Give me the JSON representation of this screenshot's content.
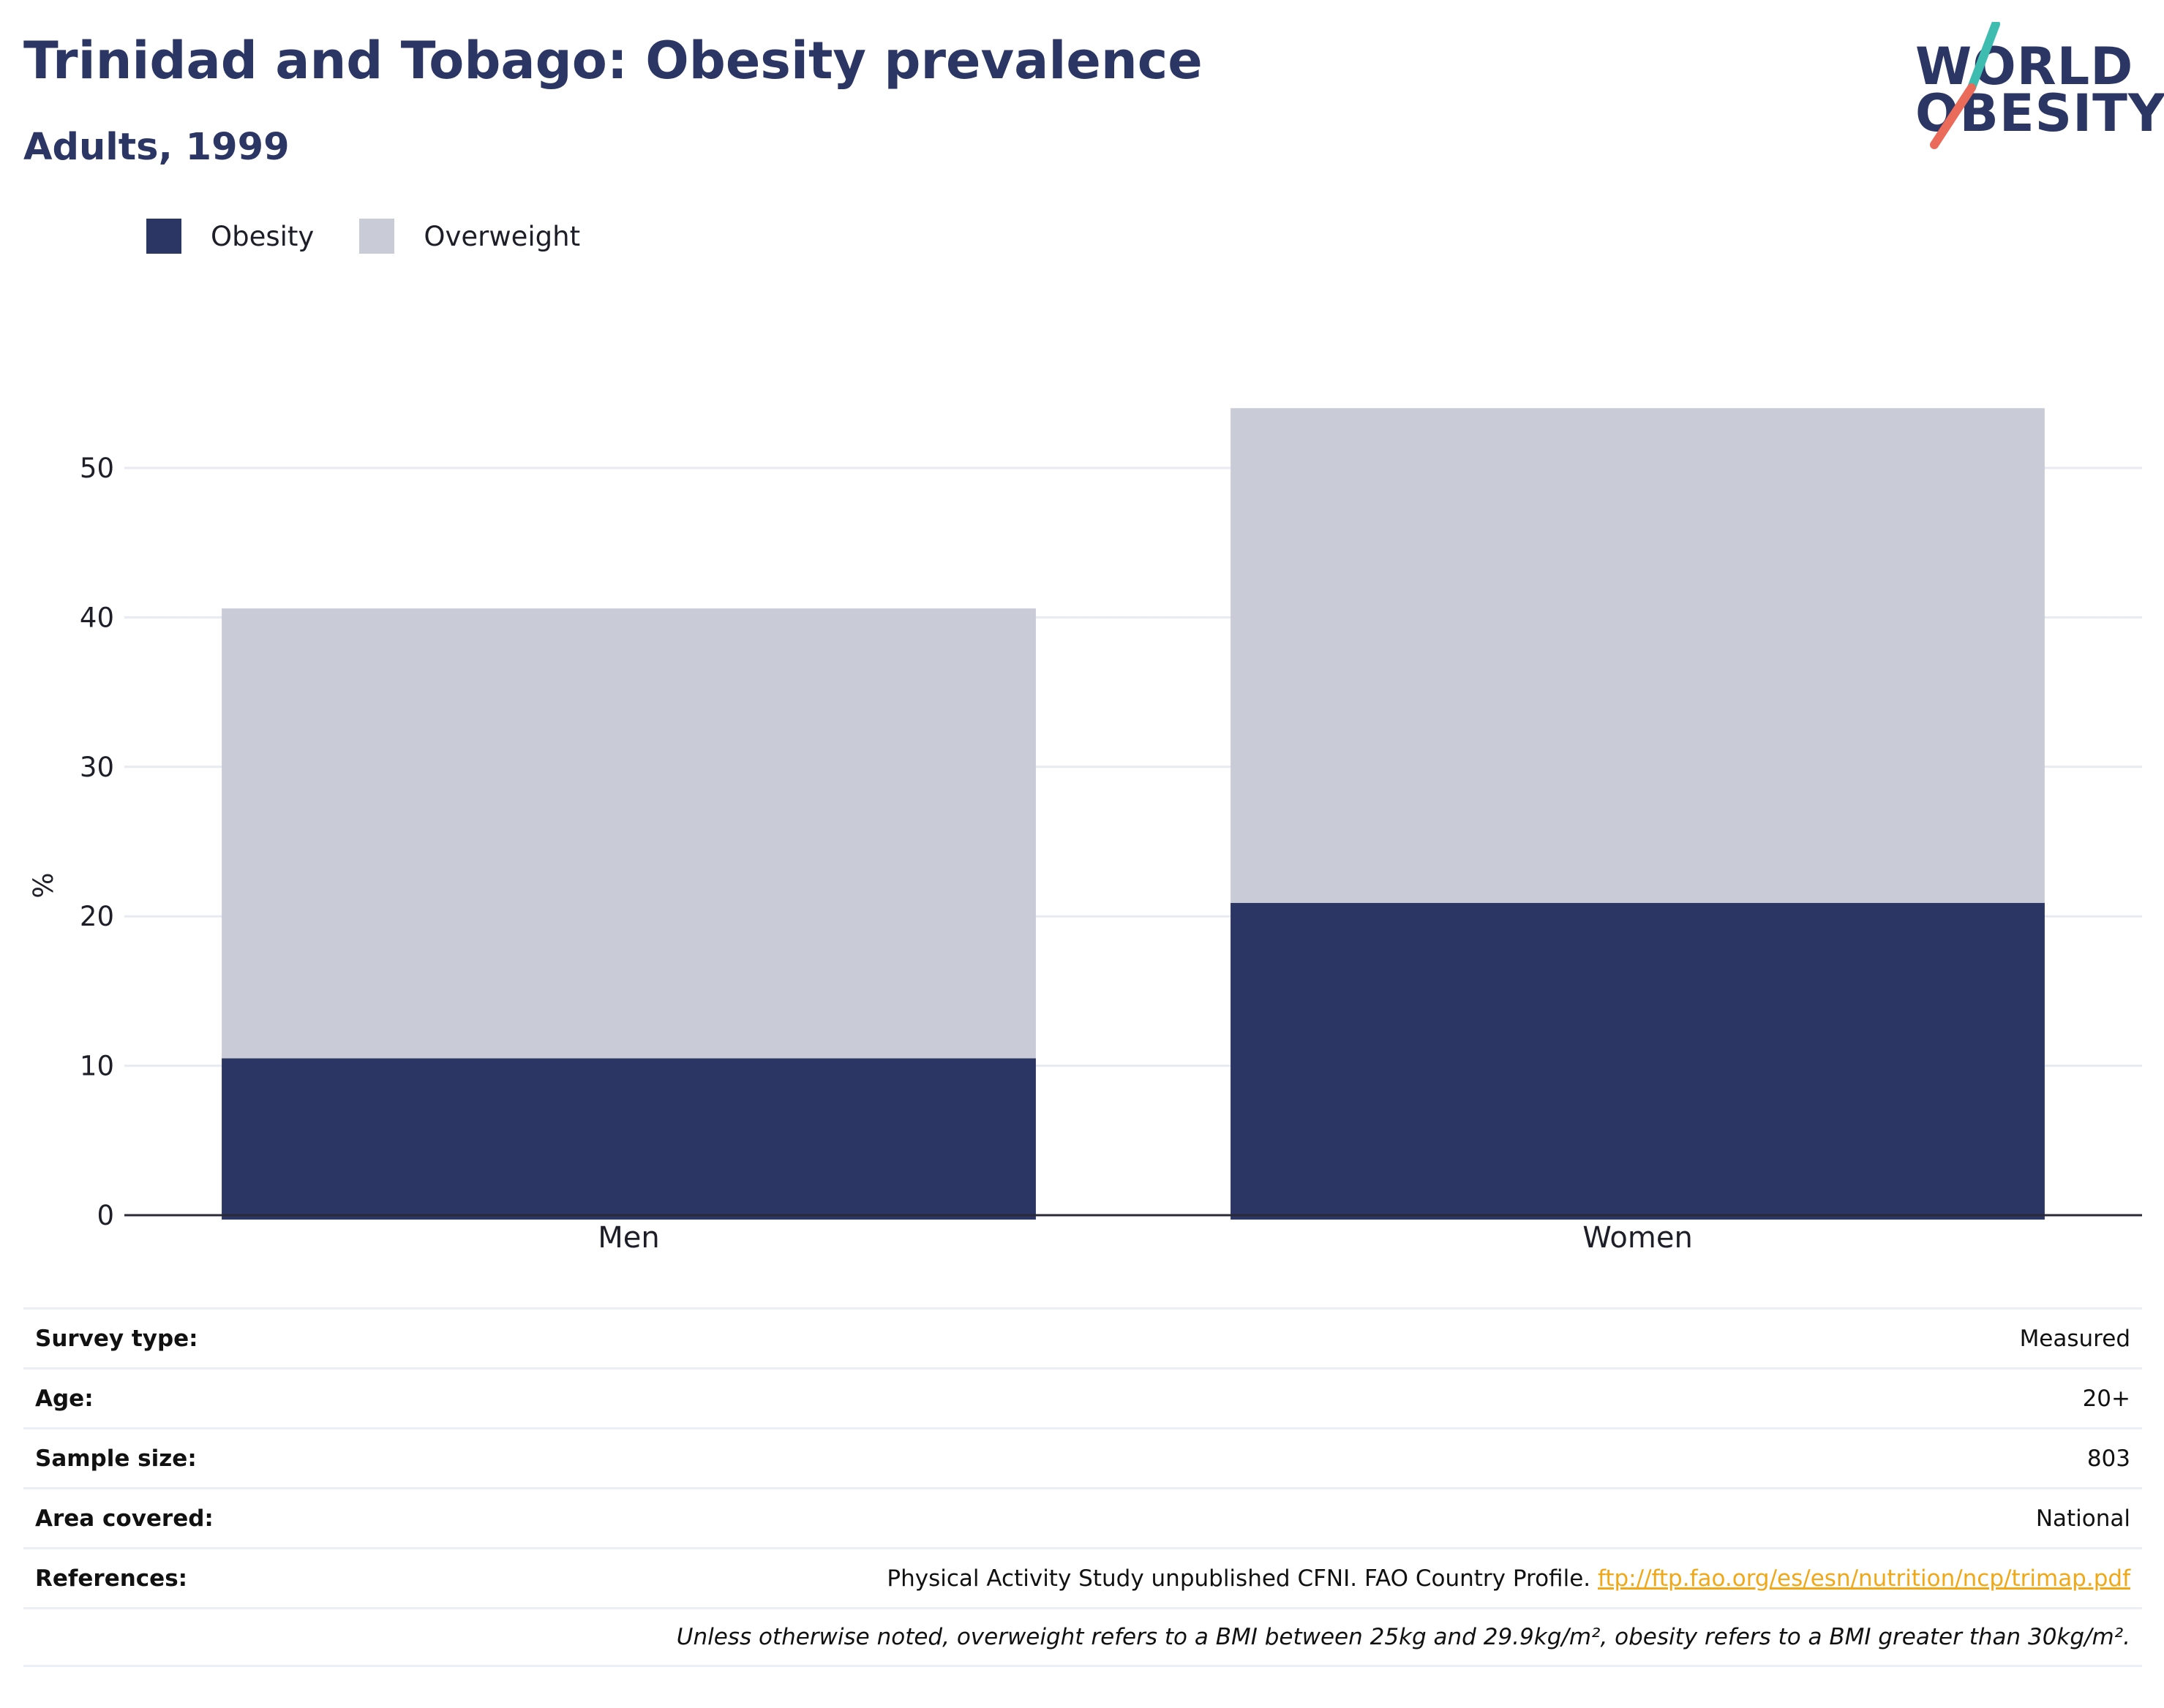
{
  "header": {
    "title": "Trinidad and Tobago: Obesity prevalence",
    "subtitle": "Adults, 1999"
  },
  "logo": {
    "line1": "WORLD",
    "line2": "OBESITY",
    "colors": {
      "text": "#2b3664",
      "slash_top": "#3fbcb0",
      "slash_bottom": "#ea6b5a"
    }
  },
  "legend": {
    "items": [
      {
        "label": "Obesity",
        "color": "#2b3664"
      },
      {
        "label": "Overweight",
        "color": "#c9ccd7"
      }
    ]
  },
  "chart_data": {
    "type": "bar",
    "stacked": true,
    "categories": [
      "Men",
      "Women"
    ],
    "series": [
      {
        "name": "Obesity",
        "values": [
          10.5,
          20.9
        ],
        "color": "#2b3664"
      },
      {
        "name": "Overweight",
        "values": [
          30.1,
          33.1
        ],
        "color": "#c9ccd7"
      }
    ],
    "ylabel": "%",
    "ylim": [
      0,
      55
    ],
    "yticks": [
      0,
      10,
      20,
      30,
      40,
      50
    ],
    "grid": true,
    "legend_position": "top-left"
  },
  "info": {
    "rows": [
      {
        "label": "Survey type:",
        "value": "Measured"
      },
      {
        "label": "Age:",
        "value": "20+"
      },
      {
        "label": "Sample size:",
        "value": "803"
      },
      {
        "label": "Area covered:",
        "value": "National"
      }
    ],
    "references": {
      "label": "References:",
      "text": "Physical Activity Study unpublished CFNI. FAO Country Profile.",
      "link": "ftp://ftp.fao.org/es/esn/nutrition/ncp/trimap.pdf"
    },
    "note": "Unless otherwise noted, overweight refers to a BMI between 25kg and 29.9kg/m², obesity refers to a BMI greater than 30kg/m²."
  }
}
